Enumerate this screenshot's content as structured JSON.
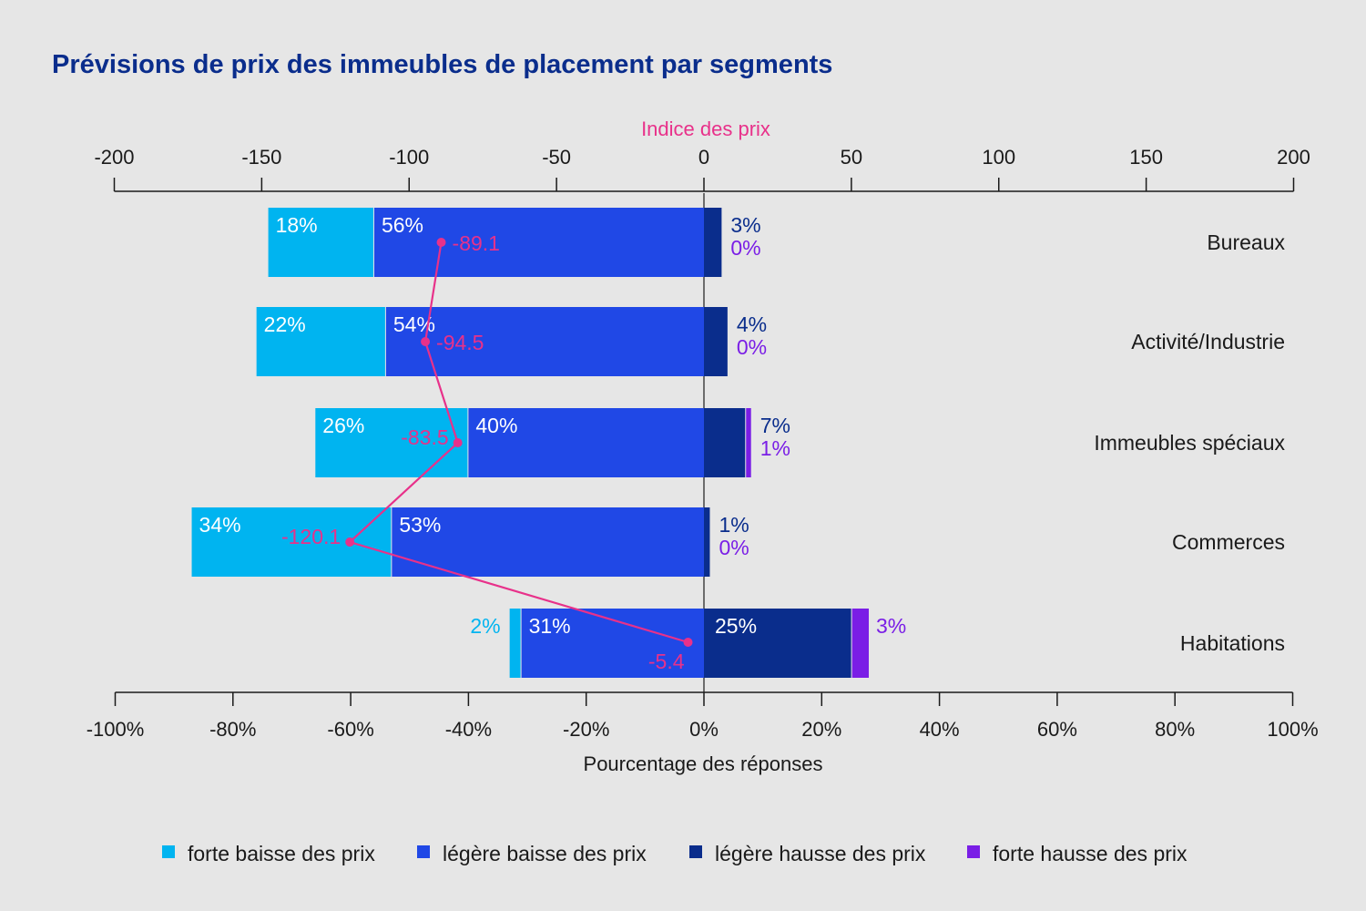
{
  "chart_data": {
    "type": "bar",
    "orientation": "horizontal",
    "stacked": "diverging",
    "title": "Prévisions de prix des immeubles de placement par segments",
    "xlabel": "Pourcentage des réponses",
    "x2label": "Indice des prix",
    "xlim": [
      -100,
      100
    ],
    "x2lim": [
      -200,
      200
    ],
    "xticks": [
      "-100%",
      "-80%",
      "-60%",
      "-40%",
      "-20%",
      "0%",
      "20%",
      "40%",
      "60%",
      "80%",
      "100%"
    ],
    "x2ticks": [
      "-200",
      "-150",
      "-100",
      "-50",
      "0",
      "50",
      "100",
      "150",
      "200"
    ],
    "categories": [
      "Bureaux",
      "Activité/Industrie",
      "Immeubles spéciaux",
      "Commerces",
      "Habitations"
    ],
    "series": [
      {
        "name": "forte baisse des prix",
        "color": "#00b4f0",
        "values": [
          18,
          22,
          26,
          34,
          2
        ],
        "labels": [
          "18%",
          "22%",
          "26%",
          "34%",
          "2%"
        ]
      },
      {
        "name": "légère baisse des prix",
        "color": "#2048e6",
        "values": [
          56,
          54,
          40,
          53,
          31
        ],
        "labels": [
          "56%",
          "54%",
          "40%",
          "53%",
          "31%"
        ]
      },
      {
        "name": "légère hausse des prix",
        "color": "#0a2d8c",
        "values": [
          3,
          4,
          7,
          1,
          25
        ],
        "labels": [
          "3%",
          "4%",
          "7%",
          "1%",
          "25%"
        ]
      },
      {
        "name": "forte hausse des prix",
        "color": "#7a1ee6",
        "values": [
          0,
          0,
          1,
          0,
          3
        ],
        "labels": [
          "0%",
          "0%",
          "1%",
          "0%",
          "3%"
        ]
      }
    ],
    "index_series": {
      "name": "Indice des prix",
      "color": "#e8318a",
      "values": [
        -89.1,
        -94.5,
        -83.5,
        -120.1,
        -5.4
      ],
      "labels": [
        "-89.1",
        "-94.5",
        "-83.5",
        "-120.1",
        "-5.4"
      ]
    },
    "legend_position": "bottom",
    "grid": false,
    "colors": {
      "title": "#0a2d8c",
      "background": "#e6e6e6",
      "axis": "#1a1a1a"
    }
  }
}
